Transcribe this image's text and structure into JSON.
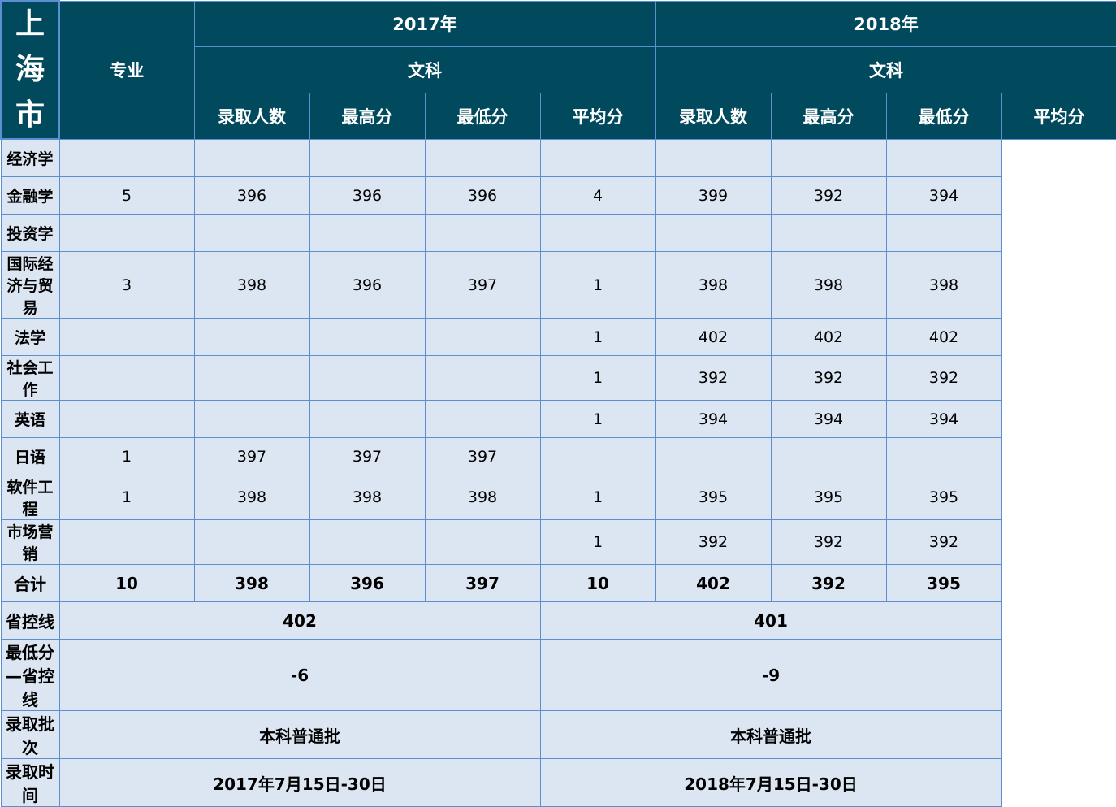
{
  "region": "上海市",
  "header": {
    "major_label": "专业",
    "years": [
      "2017年",
      "2018年"
    ],
    "category": [
      "文科",
      "文科"
    ],
    "columns": [
      "录取人数",
      "最高分",
      "最低分",
      "平均分",
      "录取人数",
      "最高分",
      "最低分",
      "平均分"
    ]
  },
  "rows": [
    {
      "major": "经济学",
      "values": [
        "",
        "",
        "",
        "",
        "",
        "",
        "",
        ""
      ]
    },
    {
      "major": "金融学",
      "values": [
        "5",
        "396",
        "396",
        "396",
        "4",
        "399",
        "392",
        "394"
      ]
    },
    {
      "major": "投资学",
      "values": [
        "",
        "",
        "",
        "",
        "",
        "",
        "",
        ""
      ]
    },
    {
      "major": "国际经济与贸易",
      "values": [
        "3",
        "398",
        "396",
        "397",
        "1",
        "398",
        "398",
        "398"
      ]
    },
    {
      "major": "法学",
      "values": [
        "",
        "",
        "",
        "",
        "1",
        "402",
        "402",
        "402"
      ]
    },
    {
      "major": "社会工作",
      "values": [
        "",
        "",
        "",
        "",
        "1",
        "392",
        "392",
        "392"
      ]
    },
    {
      "major": "英语",
      "values": [
        "",
        "",
        "",
        "",
        "1",
        "394",
        "394",
        "394"
      ]
    },
    {
      "major": "日语",
      "values": [
        "1",
        "397",
        "397",
        "397",
        "",
        "",
        "",
        ""
      ]
    },
    {
      "major": "软件工程",
      "values": [
        "1",
        "398",
        "398",
        "398",
        "1",
        "395",
        "395",
        "395"
      ]
    },
    {
      "major": "市场营销",
      "values": [
        "",
        "",
        "",
        "",
        "1",
        "392",
        "392",
        "392"
      ]
    }
  ],
  "total": {
    "label": "合计",
    "values": [
      "10",
      "398",
      "396",
      "397",
      "10",
      "402",
      "392",
      "395"
    ]
  },
  "summary": [
    {
      "label": "省控线",
      "values": [
        "402",
        "401"
      ]
    },
    {
      "label": "最低分—省控线",
      "values": [
        "-6",
        "-9"
      ]
    },
    {
      "label": "录取批次",
      "values": [
        "本科普通批",
        "本科普通批"
      ]
    },
    {
      "label": "录取时间",
      "values": [
        "2017年7月15日-30日",
        "2018年7月15日-30日"
      ]
    }
  ]
}
